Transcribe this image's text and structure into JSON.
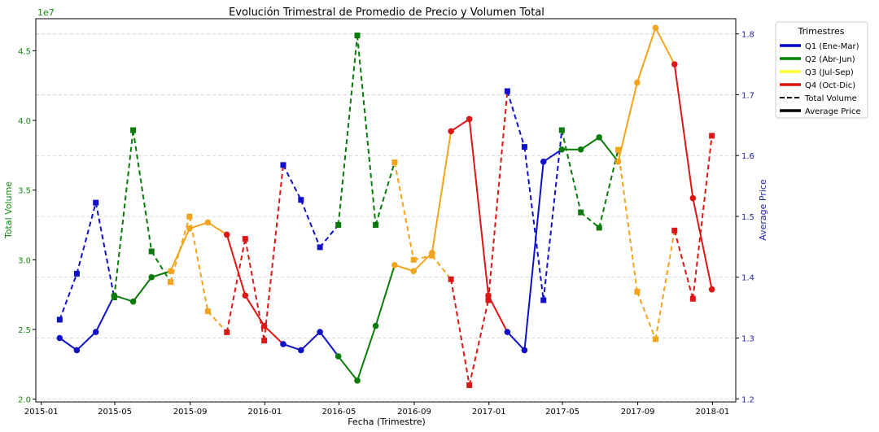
{
  "chart_data": {
    "type": "line",
    "title": "Evolución Trimestral de Promedio de Precio y Volumen Total",
    "xlabel": "Fecha (Trimestre)",
    "ylabel_left": "Total Volume",
    "ylabel_right": "Average Price",
    "left_exponent": "1e7",
    "x_ticks": [
      "2015-01",
      "2015-05",
      "2015-09",
      "2016-01",
      "2016-05",
      "2016-09",
      "2017-01",
      "2017-05",
      "2017-09",
      "2018-01"
    ],
    "y_left_ticks": [
      "2.0",
      "2.5",
      "3.0",
      "3.5",
      "4.0",
      "4.5"
    ],
    "y_right_ticks": [
      "1.2",
      "1.3",
      "1.4",
      "1.5",
      "1.6",
      "1.7",
      "1.8"
    ],
    "y_left_range": [
      1.98,
      4.73
    ],
    "y_right_range": [
      1.195,
      1.825
    ],
    "grid": true,
    "legend": {
      "title": "Trimestres",
      "position": "outside-top-right",
      "items": [
        {
          "label": "Q1 (Ene-Mar)",
          "color": "#0000cc",
          "style": "solid"
        },
        {
          "label": "Q2 (Abr-Jun)",
          "color": "#008000",
          "style": "solid"
        },
        {
          "label": "Q3 (Jul-Sep)",
          "color": "#ffff33",
          "style": "solid"
        },
        {
          "label": "Q4 (Oct-Dic)",
          "color": "#dd1111",
          "style": "solid"
        },
        {
          "label": "Total Volume",
          "color": "#000000",
          "style": "dashed"
        },
        {
          "label": "Average Price",
          "color": "#000000",
          "style": "solid"
        }
      ]
    },
    "colors": {
      "Q1": "#1010c8",
      "Q2": "#0a7a0a",
      "Q3": "#f2a41c",
      "Q4": "#dd1616"
    },
    "x": [
      "2015-01-31",
      "2015-02-28",
      "2015-03-31",
      "2015-04-30",
      "2015-05-31",
      "2015-06-30",
      "2015-07-31",
      "2015-08-31",
      "2015-09-30",
      "2015-10-31",
      "2015-11-30",
      "2015-12-31",
      "2016-01-31",
      "2016-02-29",
      "2016-03-31",
      "2016-04-30",
      "2016-05-31",
      "2016-06-30",
      "2016-07-31",
      "2016-08-31",
      "2016-09-30",
      "2016-10-31",
      "2016-11-30",
      "2016-12-31",
      "2017-01-31",
      "2017-02-28",
      "2017-03-31",
      "2017-04-30",
      "2017-05-31",
      "2017-06-30",
      "2017-07-31",
      "2017-08-31",
      "2017-09-30",
      "2017-10-31",
      "2017-11-30",
      "2017-12-31"
    ],
    "quarter": [
      "Q1",
      "Q1",
      "Q1",
      "Q2",
      "Q2",
      "Q2",
      "Q3",
      "Q3",
      "Q3",
      "Q4",
      "Q4",
      "Q4",
      "Q1",
      "Q1",
      "Q1",
      "Q2",
      "Q2",
      "Q2",
      "Q3",
      "Q3",
      "Q3",
      "Q4",
      "Q4",
      "Q4",
      "Q1",
      "Q1",
      "Q1",
      "Q2",
      "Q2",
      "Q2",
      "Q3",
      "Q3",
      "Q3",
      "Q4",
      "Q4",
      "Q4"
    ],
    "series": [
      {
        "name": "Total Volume",
        "axis": "left",
        "units": "1e7",
        "values": [
          2.57,
          2.9,
          3.41,
          2.73,
          3.93,
          3.06,
          2.84,
          3.31,
          2.63,
          2.48,
          3.15,
          2.42,
          3.68,
          3.43,
          3.09,
          3.25,
          4.61,
          3.25,
          3.7,
          3.0,
          3.03,
          2.86,
          2.1,
          2.71,
          4.21,
          3.81,
          2.71,
          3.93,
          3.34,
          3.23,
          3.79,
          2.77,
          2.43,
          3.21,
          2.72,
          3.89
        ]
      },
      {
        "name": "Average Price",
        "axis": "right",
        "values": [
          1.3,
          1.28,
          1.31,
          1.37,
          1.36,
          1.4,
          1.41,
          1.48,
          1.49,
          1.47,
          1.37,
          1.32,
          1.29,
          1.28,
          1.31,
          1.27,
          1.23,
          1.32,
          1.42,
          1.41,
          1.44,
          1.64,
          1.66,
          1.37,
          1.31,
          1.28,
          1.59,
          1.61,
          1.61,
          1.63,
          1.59,
          1.72,
          1.81,
          1.75,
          1.53,
          1.38
        ]
      }
    ]
  }
}
